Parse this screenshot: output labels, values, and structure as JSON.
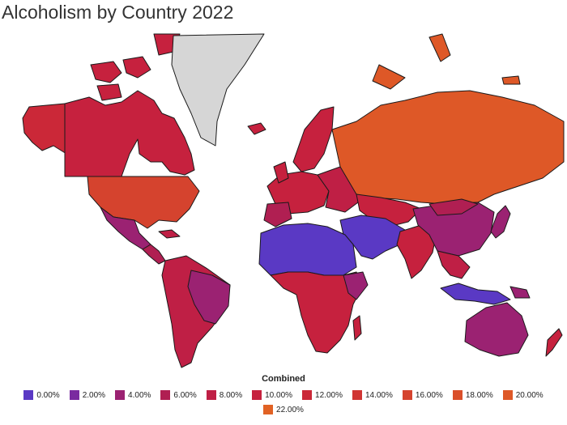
{
  "title": "Alcoholism by Country 2022",
  "legend": {
    "title": "Combined",
    "items": [
      {
        "label": "0.00%",
        "color": "#5a39c4"
      },
      {
        "label": "2.00%",
        "color": "#7a2aa0"
      },
      {
        "label": "4.00%",
        "color": "#9b2272"
      },
      {
        "label": "6.00%",
        "color": "#b01f52"
      },
      {
        "label": "8.00%",
        "color": "#bf1f45"
      },
      {
        "label": "10.00%",
        "color": "#c6213e"
      },
      {
        "label": "12.00%",
        "color": "#cb2838"
      },
      {
        "label": "14.00%",
        "color": "#d03533"
      },
      {
        "label": "16.00%",
        "color": "#d5432e"
      },
      {
        "label": "18.00%",
        "color": "#da4f2a"
      },
      {
        "label": "20.00%",
        "color": "#de5827"
      },
      {
        "label": "22.00%",
        "color": "#e16224"
      }
    ]
  },
  "colors": {
    "no_data": "#d6d6d6"
  }
}
